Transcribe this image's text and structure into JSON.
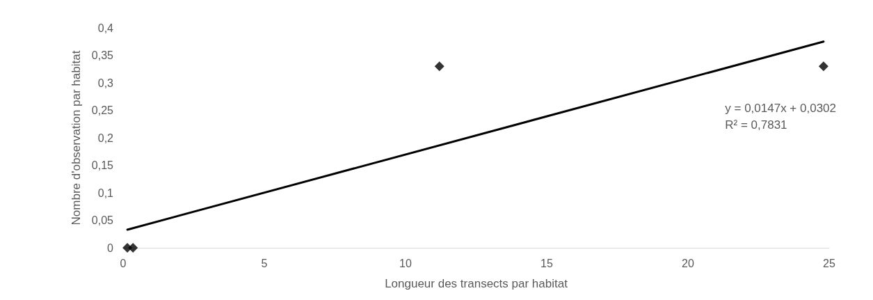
{
  "chart_data": {
    "type": "scatter",
    "xlabel": "Longueur des transects par habitat",
    "ylabel": "Nombre d'observation par habitat",
    "annotations": [
      "y = 0,0147x + 0,0302\nR² = 0,7831"
    ],
    "series": [
      {
        "color": "#000000",
        "marker": "diamond",
        "x": [
          0.15,
          0.35,
          11.2,
          24.8
        ],
        "values": [
          0,
          0,
          0.33,
          0.33
        ]
      },
      {
        "type": "line",
        "color": "#000000",
        "marker": "none",
        "line_style": "solid",
        "x": [
          0.15,
          24.8
        ],
        "values": [
          0.033,
          0.375
        ]
      }
    ],
    "xlim": [
      0,
      25
    ],
    "xticks": [
      0,
      5,
      10,
      15,
      20,
      25
    ],
    "ylim": [
      0,
      0.4
    ],
    "yticks": [
      {
        "value": 0,
        "label": "0"
      },
      {
        "value": 0.05,
        "label": "0,05"
      },
      {
        "value": 0.1,
        "label": "0,1"
      },
      {
        "value": 0.15,
        "label": "0,15"
      },
      {
        "value": 0.2,
        "label": "0,2"
      },
      {
        "value": 0.25,
        "label": "0,25"
      },
      {
        "value": 0.3,
        "label": "0,3"
      },
      {
        "value": 0.35,
        "label": "0,35"
      },
      {
        "value": 0.4,
        "label": "0,4"
      }
    ],
    "grid": false
  }
}
